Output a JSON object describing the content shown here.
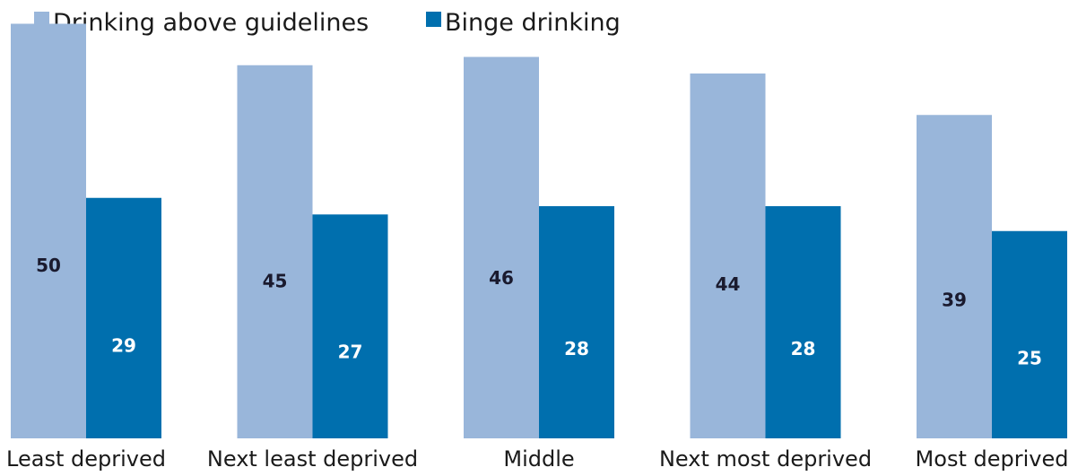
{
  "chart_data": {
    "type": "bar",
    "categories": [
      "Least deprived",
      "Next least deprived",
      "Middle",
      "Next most deprived",
      "Most deprived"
    ],
    "series": [
      {
        "name": "Drinking above guidelines",
        "values": [
          50,
          45,
          46,
          44,
          39
        ],
        "color": "#99b6da",
        "label_color": "#1a1a2e"
      },
      {
        "name": "Binge drinking",
        "values": [
          29,
          27,
          28,
          28,
          25
        ],
        "color": "#006fae",
        "label_color": "#ffffff"
      }
    ],
    "title": "",
    "xlabel": "",
    "ylabel": "",
    "ylim": [
      0,
      52
    ],
    "grid": false,
    "legend": "top-left",
    "data_labels": true
  }
}
